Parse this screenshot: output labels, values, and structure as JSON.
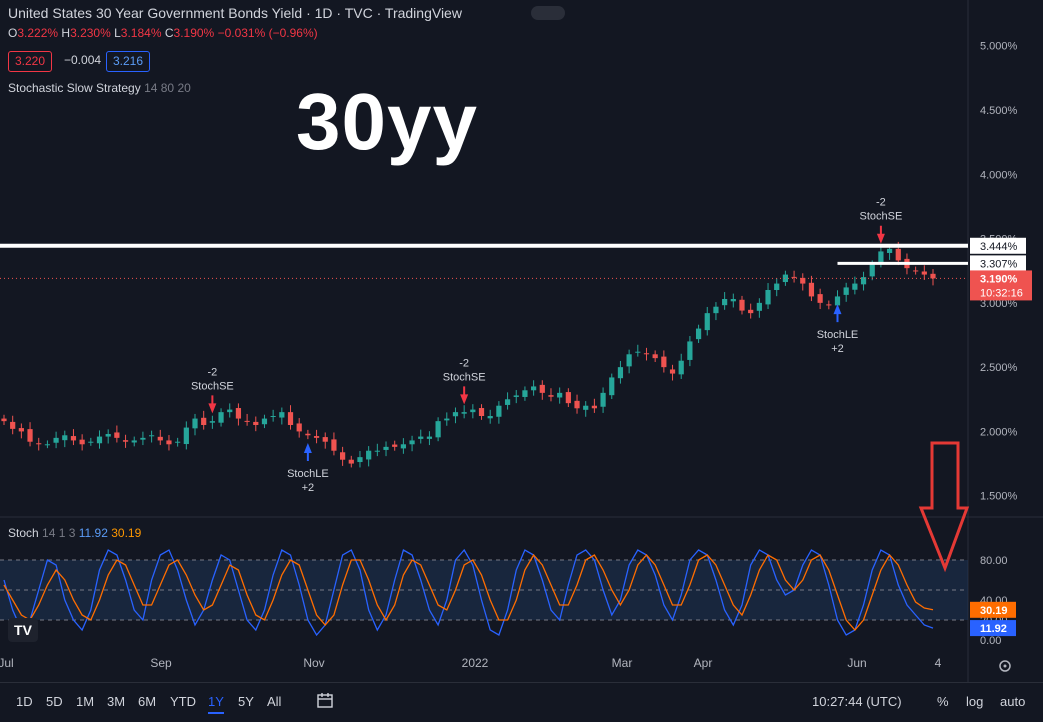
{
  "header": {
    "title": "United States 30 Year Government Bonds Yield · 1D · TVC · TradingView",
    "ohlc": {
      "o_key": "O",
      "o": "3.222%",
      "h_key": "H",
      "h": "3.230%",
      "l_key": "L",
      "l": "3.184%",
      "c_key": "C",
      "c": "3.190%",
      "chg": "−0.031% (−0.96%)"
    },
    "bid": "3.220",
    "spread": "−0.004",
    "ask": "3.216",
    "strategy_name": "Stochastic Slow Strategy",
    "strategy_params": "14 80 20",
    "overlay_text": "30yy"
  },
  "stoch_legend": {
    "name": "Stoch",
    "params": "14 1 3",
    "k": "11.92",
    "d": "30.19"
  },
  "colors": {
    "bg": "#131722",
    "up": "#26a69a",
    "down": "#ef5350",
    "k_line": "#2962ff",
    "d_line": "#ff6d00",
    "signal_up": "#2962ff",
    "signal_down": "#f23645",
    "hline": "#ffffff",
    "arrow": "#e53935"
  },
  "chart_data": [
    {
      "type": "candlestick",
      "title": "United States 30 Year Government Bonds Yield",
      "x_ticks": [
        "Jul",
        "Sep",
        "Nov",
        "2022",
        "Mar",
        "Apr",
        "Jun",
        "4"
      ],
      "y_ticks": [
        "5.000%",
        "4.500%",
        "4.000%",
        "3.500%",
        "3.000%",
        "2.500%",
        "2.000%",
        "1.500%"
      ],
      "ylim": [
        1.35,
        5.2
      ],
      "price_close": [
        2.08,
        2.02,
        2.0,
        1.92,
        1.9,
        1.9,
        1.95,
        1.97,
        1.93,
        1.9,
        1.92,
        1.96,
        1.98,
        1.95,
        1.92,
        1.93,
        1.95,
        1.97,
        1.93,
        1.9,
        1.92,
        2.03,
        2.1,
        2.05,
        2.08,
        2.15,
        2.17,
        2.1,
        2.08,
        2.05,
        2.1,
        2.12,
        2.15,
        2.05,
        2.0,
        1.97,
        1.95,
        1.92,
        1.85,
        1.78,
        1.75,
        1.8,
        1.85,
        1.85,
        1.88,
        1.88,
        1.9,
        1.93,
        1.96,
        1.96,
        2.08,
        2.1,
        2.15,
        2.15,
        2.17,
        2.12,
        2.12,
        2.2,
        2.25,
        2.28,
        2.32,
        2.35,
        2.3,
        2.27,
        2.3,
        2.22,
        2.18,
        2.2,
        2.18,
        2.3,
        2.42,
        2.5,
        2.6,
        2.62,
        2.6,
        2.57,
        2.5,
        2.45,
        2.55,
        2.7,
        2.8,
        2.92,
        2.97,
        3.03,
        3.03,
        2.94,
        2.92,
        3.0,
        3.1,
        3.15,
        3.22,
        3.2,
        3.15,
        3.05,
        3.0,
        2.98,
        3.05,
        3.12,
        3.15,
        3.2,
        3.3,
        3.4,
        3.42,
        3.33,
        3.27,
        3.25,
        3.22,
        3.19
      ],
      "last_price": "3.190%",
      "countdown": "10:32:16",
      "levels": [
        "3.444%",
        "3.307%"
      ],
      "levels_value": [
        3.444,
        3.307
      ],
      "signals": [
        {
          "type": "short",
          "index": 24,
          "label_top": "-2",
          "label_bottom": "StochSE"
        },
        {
          "type": "long",
          "index": 35,
          "label_top": "StochLE",
          "label_bottom": "+2"
        },
        {
          "type": "short",
          "index": 53,
          "label_top": "-2",
          "label_bottom": "StochSE"
        },
        {
          "type": "long",
          "index": 96,
          "label_top": "StochLE",
          "label_bottom": "+2"
        },
        {
          "type": "short",
          "index": 101,
          "label_top": "-2",
          "label_bottom": "StochSE"
        }
      ]
    },
    {
      "type": "line",
      "title": "Stoch 14 1 3",
      "y_ticks": [
        "80.00",
        "40.00",
        "20.00",
        "0.00"
      ],
      "ylim": [
        0,
        100
      ],
      "series": [
        {
          "name": "%K",
          "values": [
            60,
            30,
            10,
            20,
            50,
            80,
            75,
            40,
            20,
            10,
            30,
            70,
            90,
            85,
            60,
            30,
            20,
            60,
            85,
            90,
            70,
            40,
            15,
            30,
            60,
            85,
            80,
            50,
            20,
            10,
            30,
            65,
            90,
            85,
            55,
            20,
            5,
            15,
            50,
            85,
            90,
            70,
            30,
            10,
            25,
            60,
            90,
            85,
            60,
            30,
            15,
            40,
            80,
            90,
            75,
            40,
            10,
            5,
            30,
            70,
            90,
            85,
            60,
            30,
            20,
            55,
            85,
            90,
            80,
            50,
            25,
            40,
            75,
            90,
            85,
            65,
            35,
            20,
            45,
            80,
            90,
            85,
            60,
            30,
            15,
            35,
            75,
            90,
            85,
            60,
            45,
            50,
            75,
            90,
            85,
            55,
            20,
            5,
            10,
            35,
            70,
            90,
            85,
            55,
            35,
            25,
            15,
            11.92
          ]
        },
        {
          "name": "%D",
          "values": [
            55,
            40,
            25,
            20,
            35,
            55,
            70,
            60,
            40,
            25,
            20,
            40,
            65,
            80,
            75,
            55,
            35,
            35,
            55,
            75,
            80,
            65,
            45,
            30,
            35,
            55,
            75,
            70,
            45,
            25,
            20,
            40,
            65,
            80,
            75,
            50,
            25,
            15,
            25,
            55,
            80,
            80,
            60,
            35,
            20,
            35,
            65,
            80,
            75,
            55,
            35,
            30,
            50,
            75,
            80,
            65,
            40,
            20,
            20,
            40,
            70,
            85,
            75,
            55,
            35,
            35,
            55,
            80,
            85,
            70,
            50,
            35,
            50,
            75,
            85,
            75,
            55,
            35,
            35,
            55,
            80,
            85,
            75,
            55,
            35,
            25,
            45,
            70,
            85,
            80,
            60,
            50,
            60,
            80,
            85,
            70,
            45,
            20,
            10,
            20,
            45,
            70,
            85,
            75,
            55,
            38,
            32,
            30.19
          ]
        }
      ]
    }
  ],
  "axis_overlay": {
    "k_value": "11.92",
    "d_value": "30.19"
  },
  "timebar": {
    "tabs": [
      "1D",
      "5D",
      "1M",
      "3M",
      "6M",
      "YTD",
      "1Y",
      "5Y",
      "All"
    ],
    "selected": "1Y",
    "clock": "10:27:44 (UTC)",
    "pct": "%",
    "log": "log",
    "auto": "auto"
  },
  "logo": "TV"
}
